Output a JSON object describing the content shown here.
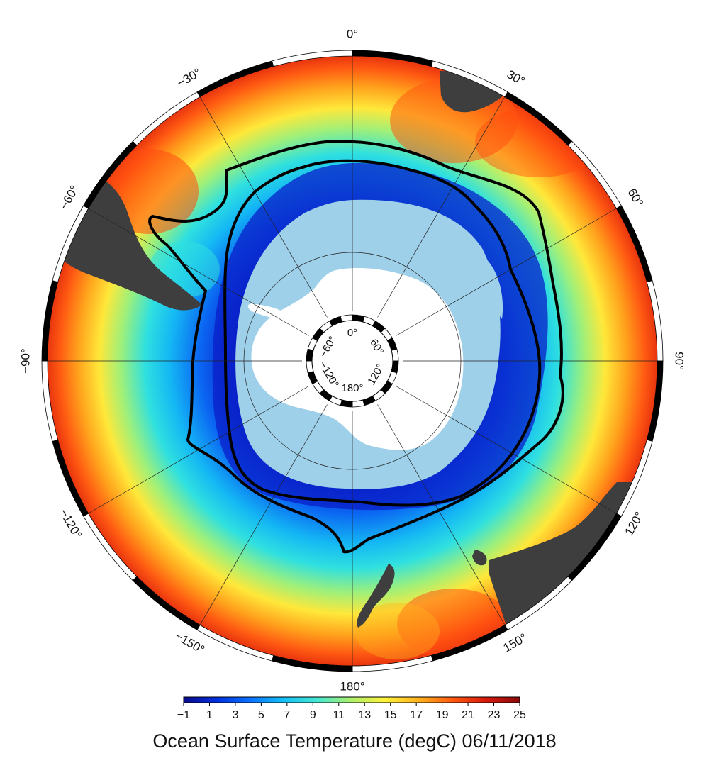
{
  "map": {
    "projection": "south-polar-stereographic",
    "outer_longitude_labels": [
      {
        "lon": 0,
        "text": "0°"
      },
      {
        "lon": 30,
        "text": "30°"
      },
      {
        "lon": 60,
        "text": "60°"
      },
      {
        "lon": 90,
        "text": "90°"
      },
      {
        "lon": 120,
        "text": "120°"
      },
      {
        "lon": 150,
        "text": "150°"
      },
      {
        "lon": 180,
        "text": "180°"
      },
      {
        "lon": -150,
        "text": "−150°"
      },
      {
        "lon": -120,
        "text": "−120°"
      },
      {
        "lon": -90,
        "text": "−90°"
      },
      {
        "lon": -60,
        "text": "−60°"
      },
      {
        "lon": -30,
        "text": "−30°"
      }
    ],
    "inner_longitude_labels": [
      {
        "lon": 0,
        "text": "0°"
      },
      {
        "lon": 60,
        "text": "60°"
      },
      {
        "lon": 120,
        "text": "120°"
      },
      {
        "lon": 180,
        "text": "180°"
      },
      {
        "lon": -120,
        "text": "−120°"
      },
      {
        "lon": -60,
        "text": "−60°"
      }
    ],
    "colors": {
      "land": "#3e3e3e",
      "antarctica": "#ffffff",
      "sea_ice": "#9fd0ea",
      "front_line": "#000000",
      "graticule": "#222222"
    }
  },
  "colorbar": {
    "min": -1,
    "max": 25,
    "tick_labels": [
      "−1",
      "1",
      "3",
      "5",
      "7",
      "9",
      "11",
      "13",
      "15",
      "17",
      "19",
      "21",
      "23",
      "25"
    ],
    "colormap": [
      "#0a0a8c",
      "#0030e0",
      "#0b74ff",
      "#14c2f6",
      "#48e8d0",
      "#aef06a",
      "#fff23a",
      "#ffb21e",
      "#ff5a10",
      "#d8190c",
      "#8a0a0a"
    ]
  },
  "caption": "Ocean Surface Temperature (degC) 06/11/2018"
}
